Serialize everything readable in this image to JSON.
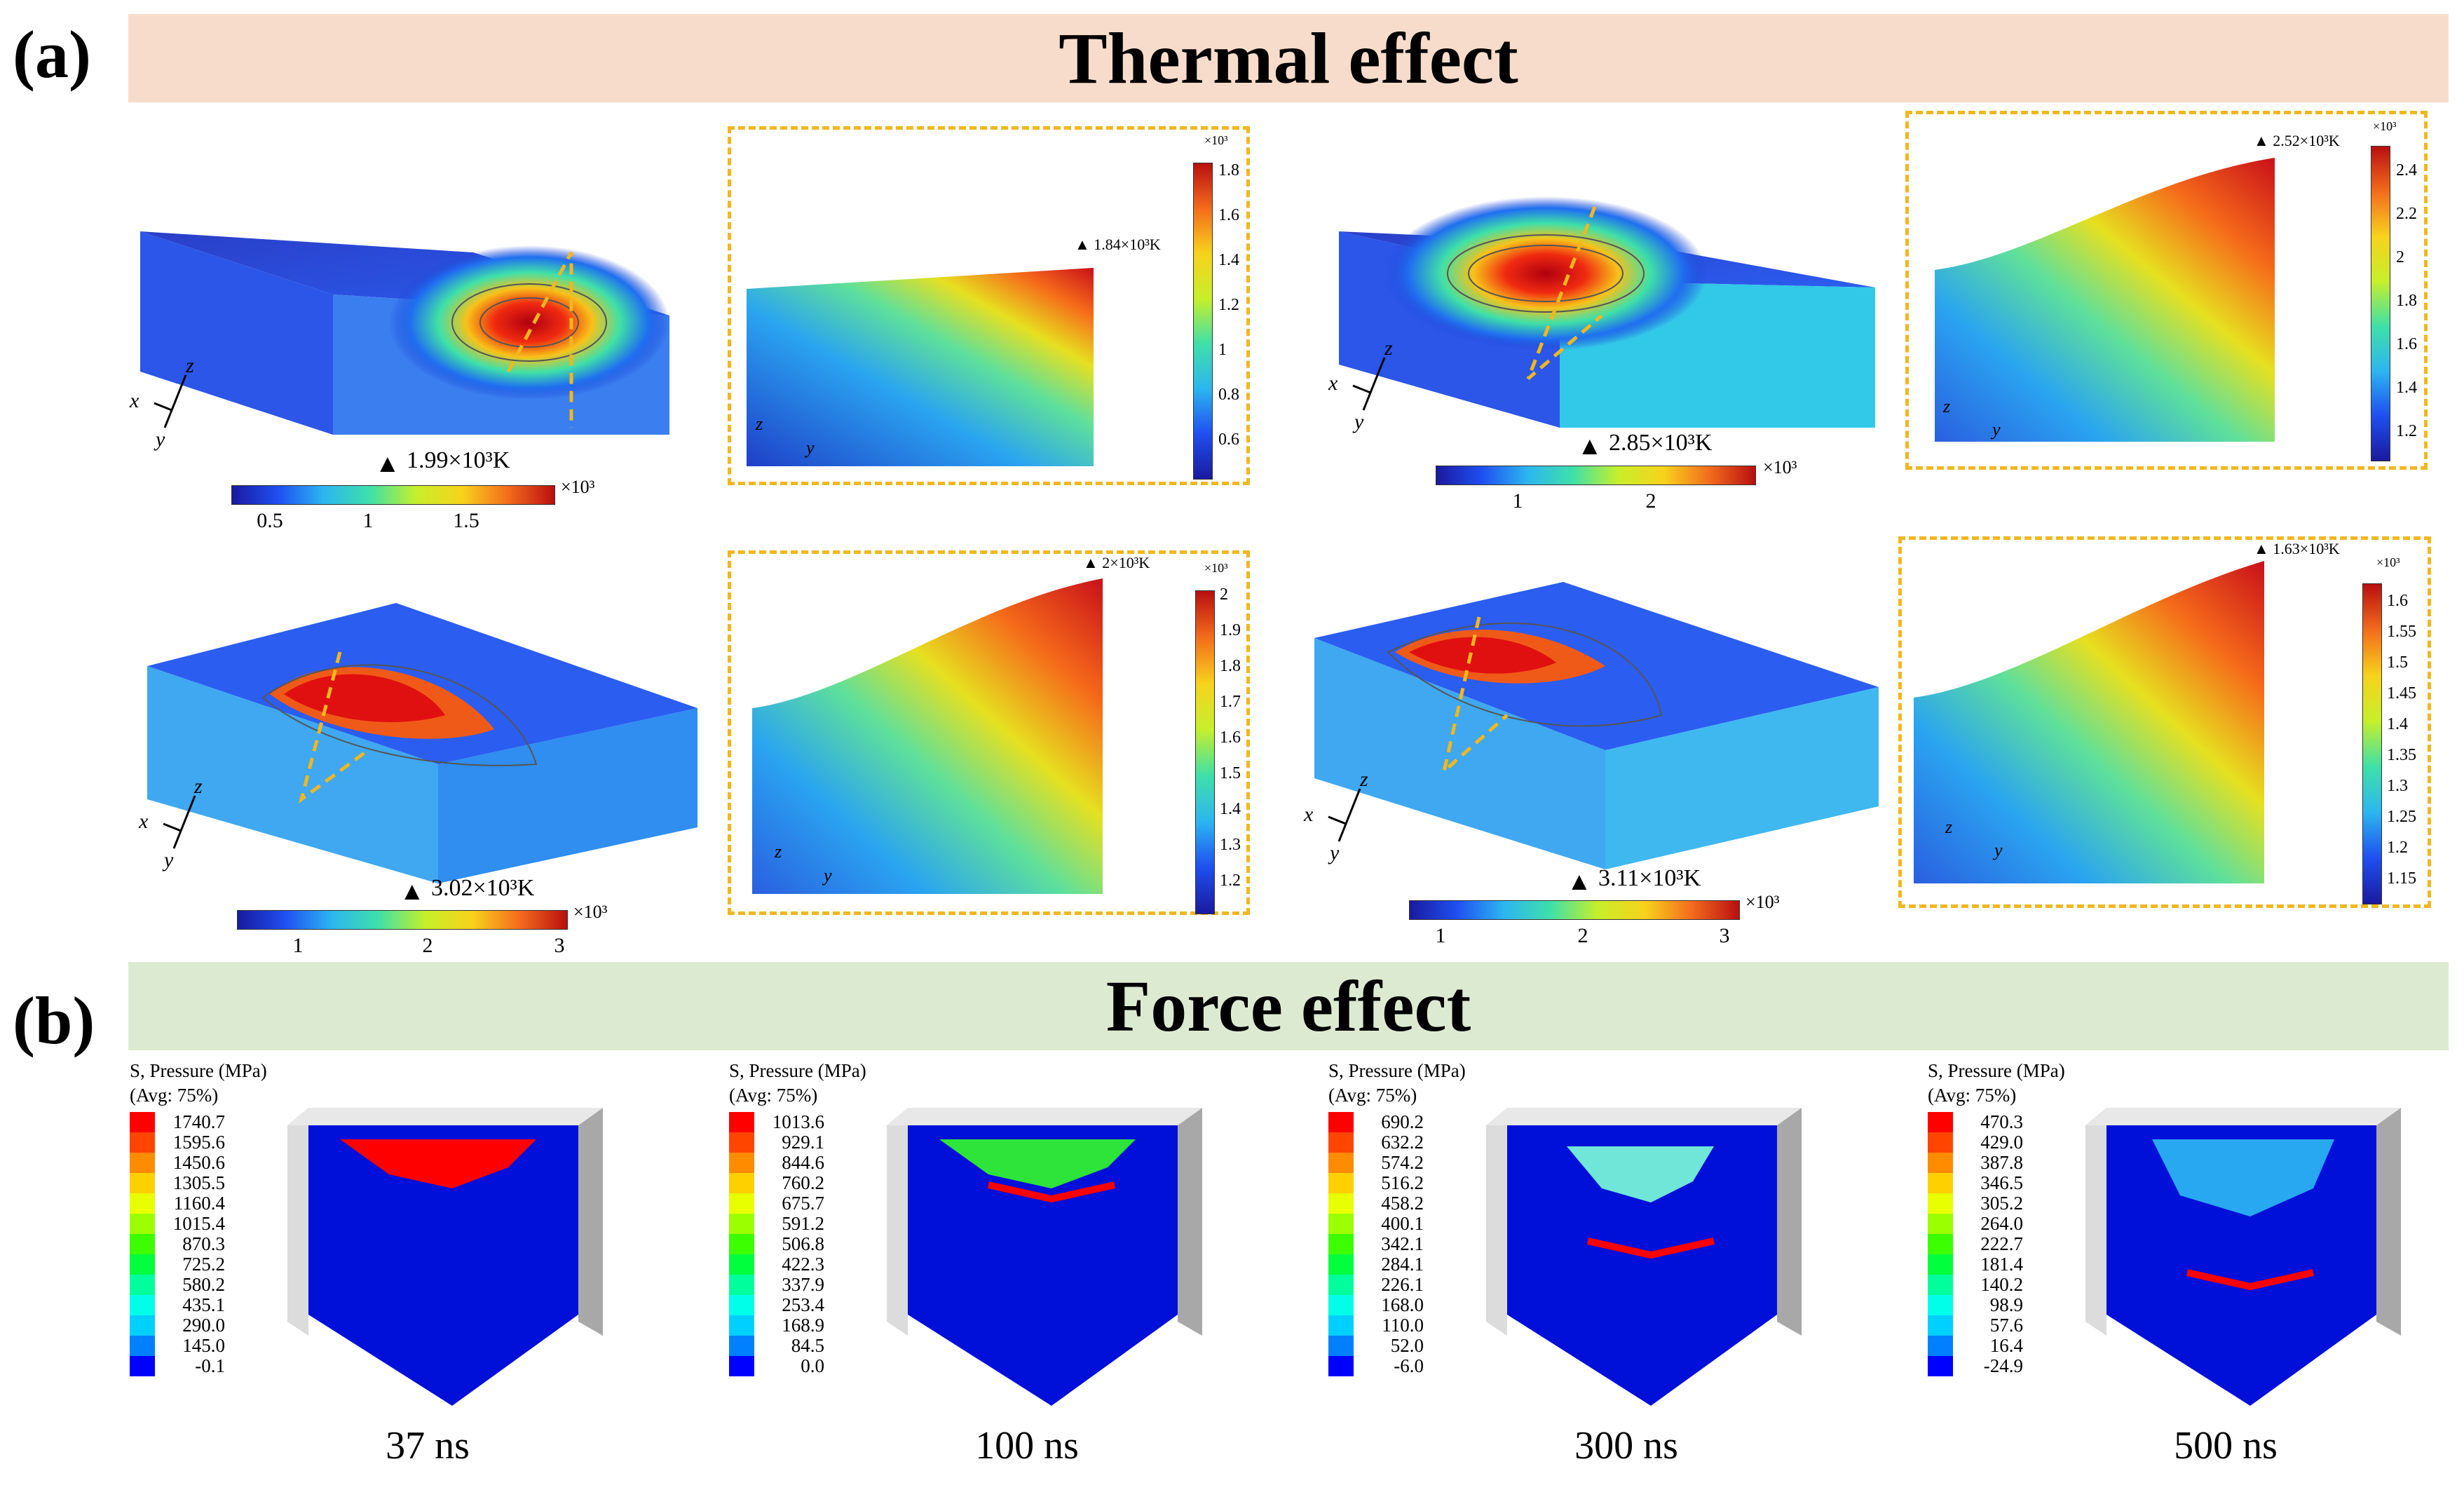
{
  "panel_a": {
    "label": "(a)",
    "title": "Thermal effect",
    "sims": [
      {
        "max_main": "1.99×10³K",
        "cbar_ticks": [
          "0.5",
          "1",
          "1.5"
        ],
        "multiplier": "×10³",
        "zoom_max": "1.84×10³K",
        "zoom_multiplier": "×10³",
        "zoom_ticks": [
          "1.8",
          "1.6",
          "1.4",
          "1.2",
          "1",
          "0.8",
          "0.6"
        ]
      },
      {
        "max_main": "2.85×10³K",
        "cbar_ticks": [
          "1",
          "2"
        ],
        "multiplier": "×10³",
        "zoom_max": "2.52×10³K",
        "zoom_multiplier": "×10³",
        "zoom_ticks": [
          "2.4",
          "2.2",
          "2",
          "1.8",
          "1.6",
          "1.4",
          "1.2"
        ]
      },
      {
        "max_main": "3.02×10³K",
        "cbar_ticks": [
          "1",
          "2",
          "3"
        ],
        "multiplier": "×10³",
        "zoom_max": "2×10³K",
        "zoom_multiplier": "×10³",
        "zoom_ticks": [
          "2",
          "1.9",
          "1.8",
          "1.7",
          "1.6",
          "1.5",
          "1.4",
          "1.3",
          "1.2"
        ]
      },
      {
        "max_main": "3.11×10³K",
        "cbar_ticks": [
          "1",
          "2",
          "3"
        ],
        "multiplier": "×10³",
        "zoom_max": "1.63×10³K",
        "zoom_multiplier": "×10³",
        "zoom_ticks": [
          "1.6",
          "1.55",
          "1.5",
          "1.45",
          "1.4",
          "1.35",
          "1.3",
          "1.25",
          "1.2",
          "1.15"
        ]
      }
    ],
    "axes_main": {
      "x": "x",
      "y": "y",
      "z": "z"
    },
    "axes_zoom": {
      "y": "y",
      "z": "z"
    }
  },
  "panel_b": {
    "label": "(b)",
    "title": "Force effect",
    "legend_title_1": "S, Pressure (MPa)",
    "legend_title_2": "(Avg: 75%)",
    "legend_colors": [
      "#ff0000",
      "#ff4500",
      "#ff8c00",
      "#ffd000",
      "#e8ff00",
      "#9cff00",
      "#3cff00",
      "#00ff3c",
      "#00ff9c",
      "#00ffe8",
      "#00d0ff",
      "#0080ff",
      "#0000ff"
    ],
    "sims": [
      {
        "time": "37 ns",
        "values": [
          "1740.7",
          "1595.6",
          "1450.6",
          "1305.5",
          "1160.4",
          "1015.4",
          "870.3",
          "725.2",
          "580.2",
          "435.1",
          "290.0",
          "145.0",
          "-0.1"
        ]
      },
      {
        "time": "100 ns",
        "values": [
          "1013.6",
          "929.1",
          "844.6",
          "760.2",
          "675.7",
          "591.2",
          "506.8",
          "422.3",
          "337.9",
          "253.4",
          "168.9",
          "84.5",
          "0.0"
        ]
      },
      {
        "time": "300 ns",
        "values": [
          "690.2",
          "632.2",
          "574.2",
          "516.2",
          "458.2",
          "400.1",
          "342.1",
          "284.1",
          "226.1",
          "168.0",
          "110.0",
          "52.0",
          "-6.0"
        ]
      },
      {
        "time": "500 ns",
        "values": [
          "470.3",
          "429.0",
          "387.8",
          "346.5",
          "305.2",
          "264.0",
          "222.7",
          "181.4",
          "140.2",
          "98.9",
          "57.6",
          "16.4",
          "-24.9"
        ]
      }
    ]
  }
}
